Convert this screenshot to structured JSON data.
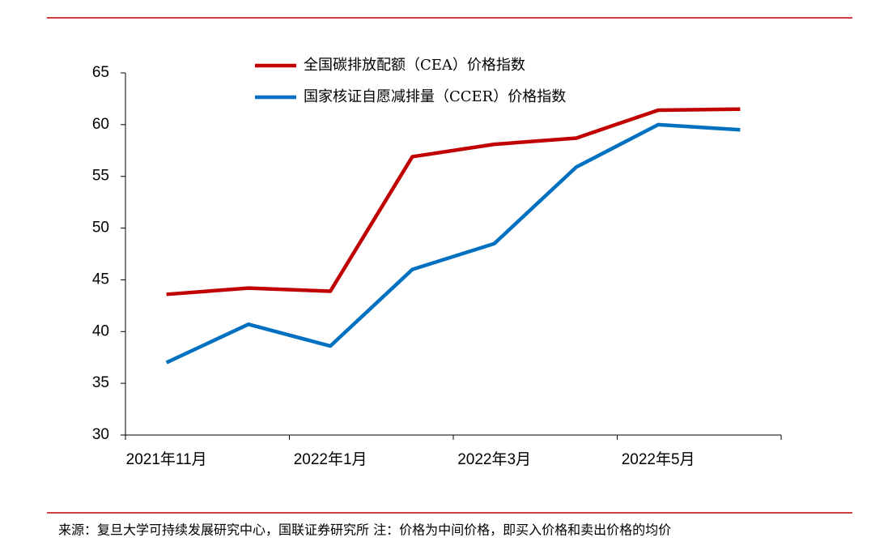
{
  "chart_data": {
    "type": "line",
    "categories": [
      "2021年11月",
      null,
      "2022年1月",
      null,
      "2022年3月",
      null,
      "2022年5月",
      null
    ],
    "series": [
      {
        "name": "全国碳排放配额（CEA）价格指数",
        "color": "#c00000",
        "values": [
          43.6,
          44.2,
          43.9,
          56.9,
          58.1,
          58.7,
          61.4,
          61.5
        ]
      },
      {
        "name": "国家核证自愿减排量（CCER）价格指数",
        "color": "#0070c0",
        "values": [
          37.0,
          40.7,
          38.6,
          46.0,
          48.5,
          55.9,
          60.0,
          59.5
        ]
      }
    ],
    "ylim": [
      30,
      65
    ],
    "yticks": [
      30,
      35,
      40,
      45,
      50,
      55,
      60,
      65
    ],
    "grid": false,
    "legend": "top"
  },
  "footer": {
    "source": "来源：复旦大学可持续发展研究中心，国联证券研究所 注：价格为中间价格，即买入价格和卖出价格的均价"
  }
}
